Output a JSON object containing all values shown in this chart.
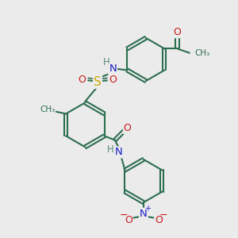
{
  "bg_color": "#ebebeb",
  "bond_color": "#2d6e50",
  "bond_width": 1.5,
  "atom_colors": {
    "N": "#1a1acc",
    "O": "#cc1a1a",
    "S": "#ccaa00",
    "H": "#5a8a7a",
    "C": "#2d6e50"
  },
  "fig_size": [
    3.0,
    3.0
  ],
  "dpi": 100,
  "xlim": [
    0,
    10
  ],
  "ylim": [
    0,
    10
  ]
}
